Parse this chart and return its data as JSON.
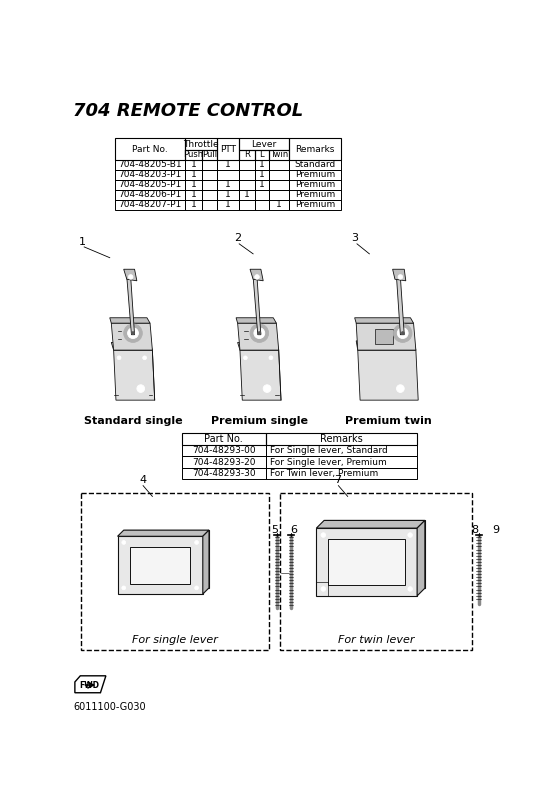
{
  "title": "704 REMOTE CONTROL",
  "bg_color": "#f5f5f5",
  "table1": {
    "rows": [
      [
        "704-48205-B1",
        "1",
        "",
        "1",
        "",
        "1",
        "",
        "Standard"
      ],
      [
        "704-48203-P1",
        "1",
        "",
        "",
        "",
        "1",
        "",
        "Premium"
      ],
      [
        "704-48205-P1",
        "1",
        "",
        "1",
        "",
        "1",
        "",
        "Premium"
      ],
      [
        "704-48206-P1",
        "1",
        "",
        "1",
        "1",
        "",
        "",
        "Premium"
      ],
      [
        "704-48207-P1",
        "1",
        "",
        "1",
        "",
        "",
        "1",
        "Premium"
      ]
    ]
  },
  "table2": {
    "rows": [
      [
        "704-48293-00",
        "For Single lever, Standard"
      ],
      [
        "704-48293-20",
        "For Single lever, Premium"
      ],
      [
        "704-48293-30",
        "For Twin lever, Premium"
      ]
    ]
  },
  "labels": {
    "standard_single": "Standard single",
    "premium_single": "Premium single",
    "premium_twin": "Premium twin",
    "single_lever": "For single lever",
    "twin_lever": "For twin lever"
  },
  "footer": "6011100-G030"
}
